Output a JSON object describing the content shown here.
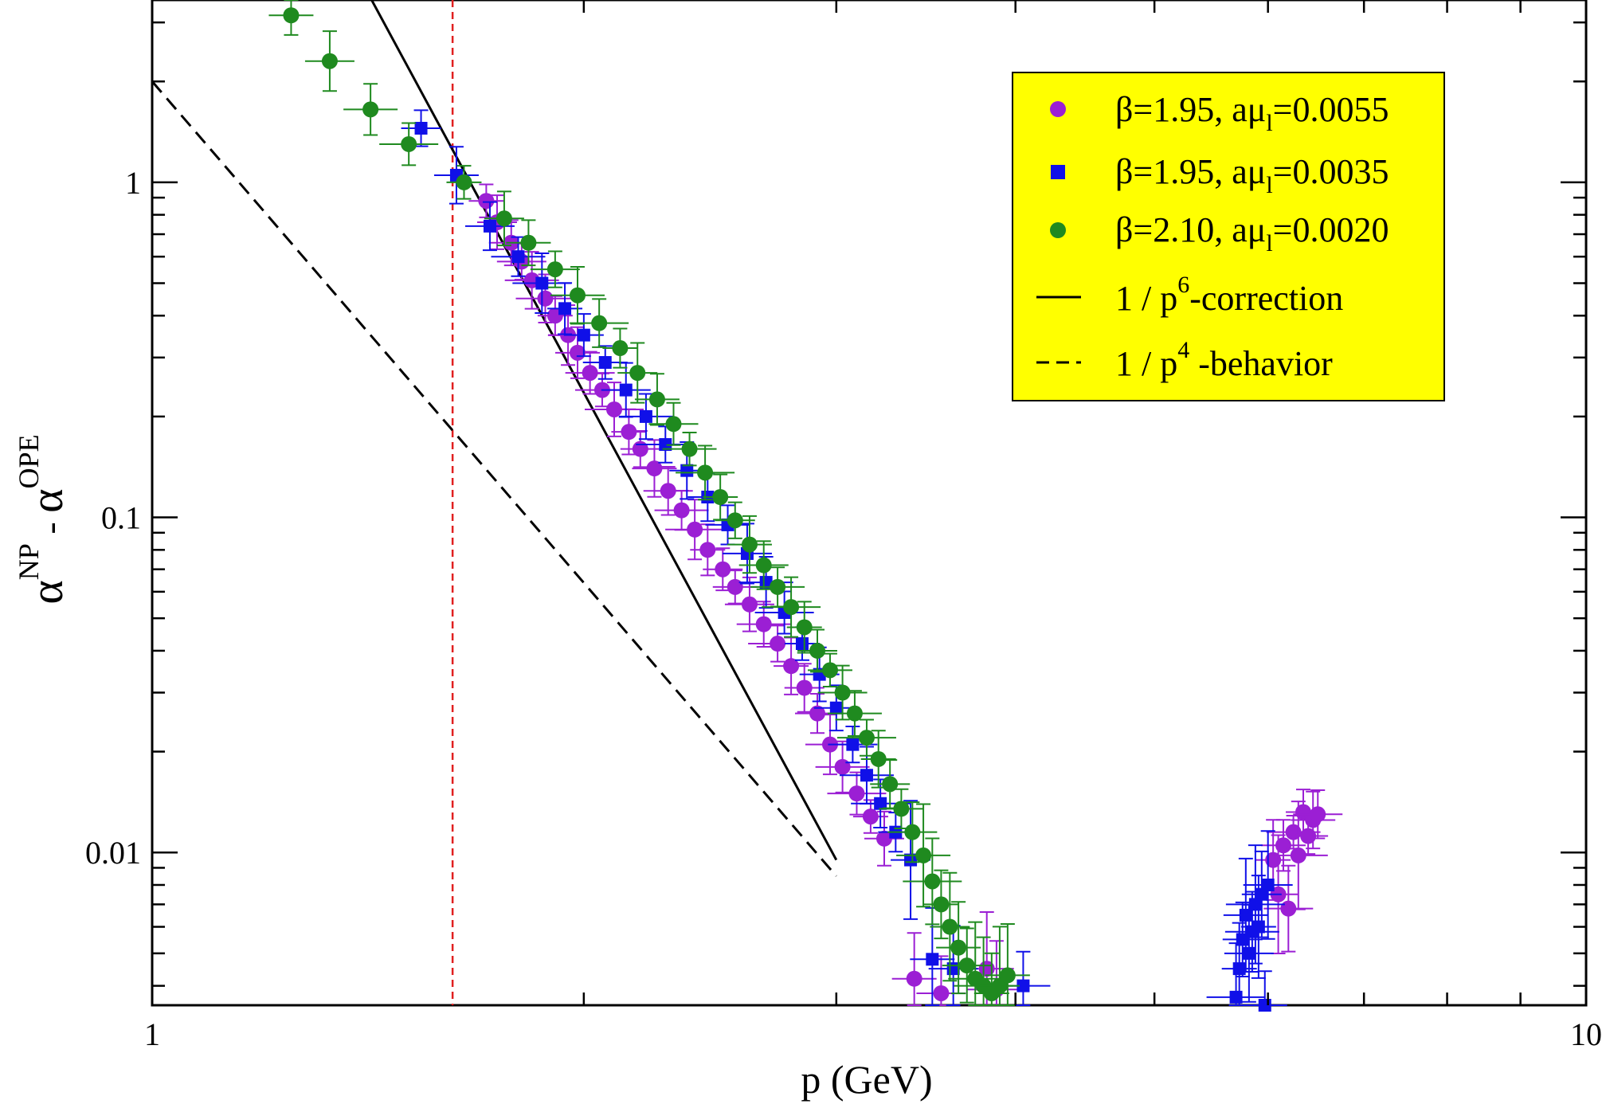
{
  "chart_data": {
    "type": "scatter",
    "xscale": "log",
    "yscale": "log",
    "xlim": [
      1,
      10
    ],
    "ylim": [
      0.0035,
      3.5
    ],
    "grid": false,
    "legend_position": "top-right",
    "xlabel": "p (GeV)",
    "ylabel": {
      "base1": "α",
      "sup1": "NP",
      "sep": " - ",
      "base2": "α",
      "sup2": "OPE"
    },
    "x_ticks": [
      {
        "value": 1,
        "label": "1"
      },
      {
        "value": 10,
        "label": "10"
      }
    ],
    "y_ticks": [
      {
        "value": 0.01,
        "label": "0.01"
      },
      {
        "value": 0.1,
        "label": "0.1"
      },
      {
        "value": 1,
        "label": "1"
      }
    ],
    "vertical_reference_line": {
      "x": 1.62,
      "color": "#e02020",
      "style": "dashed"
    },
    "colors": {
      "purple": "#9b1fd4",
      "blue": "#1010e8",
      "green": "#1f8a1f",
      "legend_bg": "#ffff00"
    },
    "legend": [
      {
        "kind": "circle",
        "color": "#9b1fd4",
        "text": "β=1.95, aμ",
        "sub": "l",
        "text2": "=0.0055"
      },
      {
        "kind": "square",
        "color": "#1010e8",
        "text": "β=1.95, aμ",
        "sub": "l",
        "text2": "=0.0035"
      },
      {
        "kind": "circle",
        "color": "#1f8a1f",
        "text": "β=2.10, aμ",
        "sub": "l",
        "text2": "=0.0020"
      },
      {
        "kind": "solid",
        "color": "#000000",
        "text": "1  / p",
        "sup": "6",
        "text2": "-correction"
      },
      {
        "kind": "dashed",
        "color": "#000000",
        "text": "1 / p",
        "sup": "4",
        "text2": " -behavior"
      }
    ],
    "lines": [
      {
        "name": "1 / p^6-correction",
        "style": "solid",
        "points": [
          [
            1.42,
            3.55
          ],
          [
            3.0,
            0.0095
          ]
        ]
      },
      {
        "name": "1 / p^4-behavior",
        "style": "dashed",
        "points": [
          [
            1.0,
            2.0
          ],
          [
            3.0,
            0.0085
          ]
        ]
      }
    ],
    "series": [
      {
        "name": "β=1.95, aμl=0.0055",
        "marker": "circle",
        "color": "#9b1fd4",
        "points": [
          [
            1.71,
            0.88
          ],
          [
            1.74,
            0.76
          ],
          [
            1.78,
            0.66
          ],
          [
            1.81,
            0.58
          ],
          [
            1.84,
            0.51
          ],
          [
            1.88,
            0.45
          ],
          [
            1.91,
            0.4
          ],
          [
            1.95,
            0.35
          ],
          [
            1.98,
            0.31
          ],
          [
            2.02,
            0.27
          ],
          [
            2.06,
            0.24
          ],
          [
            2.1,
            0.21
          ],
          [
            2.15,
            0.18
          ],
          [
            2.19,
            0.16
          ],
          [
            2.24,
            0.14
          ],
          [
            2.29,
            0.12
          ],
          [
            2.34,
            0.105
          ],
          [
            2.39,
            0.092
          ],
          [
            2.44,
            0.08
          ],
          [
            2.5,
            0.07
          ],
          [
            2.55,
            0.062
          ],
          [
            2.61,
            0.055
          ],
          [
            2.67,
            0.048
          ],
          [
            2.73,
            0.042
          ],
          [
            2.79,
            0.036
          ],
          [
            2.85,
            0.031
          ],
          [
            2.91,
            0.026
          ],
          [
            2.97,
            0.021
          ],
          [
            3.03,
            0.018
          ],
          [
            3.1,
            0.015
          ],
          [
            3.17,
            0.0128
          ],
          [
            3.24,
            0.011
          ],
          [
            3.4,
            0.0042
          ],
          [
            3.55,
            0.0038
          ],
          [
            3.82,
            0.0045
          ],
          [
            3.88,
            0.0039
          ],
          [
            6.05,
            0.0095
          ],
          [
            6.1,
            0.0075
          ],
          [
            6.15,
            0.0105
          ],
          [
            6.2,
            0.0068
          ],
          [
            6.25,
            0.0115
          ],
          [
            6.3,
            0.0098
          ],
          [
            6.35,
            0.0132
          ],
          [
            6.4,
            0.0112
          ],
          [
            6.45,
            0.0125
          ],
          [
            6.5,
            0.013
          ]
        ]
      },
      {
        "name": "β=1.95, aμl=0.0035",
        "marker": "square",
        "color": "#1010e8",
        "points": [
          [
            1.54,
            1.45
          ],
          [
            1.63,
            1.05
          ],
          [
            1.72,
            0.74
          ],
          [
            1.8,
            0.6
          ],
          [
            1.87,
            0.5
          ],
          [
            1.94,
            0.42
          ],
          [
            2.0,
            0.35
          ],
          [
            2.07,
            0.29
          ],
          [
            2.14,
            0.24
          ],
          [
            2.21,
            0.2
          ],
          [
            2.28,
            0.165
          ],
          [
            2.36,
            0.138
          ],
          [
            2.44,
            0.115
          ],
          [
            2.52,
            0.095
          ],
          [
            2.6,
            0.078
          ],
          [
            2.68,
            0.064
          ],
          [
            2.76,
            0.052
          ],
          [
            2.84,
            0.042
          ],
          [
            2.92,
            0.034
          ],
          [
            3.0,
            0.027
          ],
          [
            3.08,
            0.021
          ],
          [
            3.15,
            0.017
          ],
          [
            3.22,
            0.014
          ],
          [
            3.3,
            0.0115
          ],
          [
            3.38,
            0.0095
          ],
          [
            3.5,
            0.0048
          ],
          [
            3.62,
            0.0045
          ],
          [
            4.05,
            0.004
          ],
          [
            5.7,
            0.0037
          ],
          [
            5.73,
            0.0045
          ],
          [
            5.76,
            0.0055
          ],
          [
            5.79,
            0.0065
          ],
          [
            5.82,
            0.005
          ],
          [
            5.85,
            0.0058
          ],
          [
            5.88,
            0.007
          ],
          [
            5.91,
            0.006
          ],
          [
            5.94,
            0.0075
          ],
          [
            5.97,
            0.0035
          ],
          [
            6.0,
            0.008
          ]
        ]
      },
      {
        "name": "β=2.10, aμl=0.0020",
        "marker": "circle",
        "color": "#1f8a1f",
        "points": [
          [
            1.25,
            3.15
          ],
          [
            1.33,
            2.3
          ],
          [
            1.42,
            1.65
          ],
          [
            1.51,
            1.3
          ],
          [
            1.65,
            1.0
          ],
          [
            1.76,
            0.78
          ],
          [
            1.83,
            0.66
          ],
          [
            1.91,
            0.55
          ],
          [
            1.98,
            0.46
          ],
          [
            2.05,
            0.38
          ],
          [
            2.12,
            0.32
          ],
          [
            2.18,
            0.27
          ],
          [
            2.25,
            0.225
          ],
          [
            2.31,
            0.19
          ],
          [
            2.37,
            0.16
          ],
          [
            2.43,
            0.136
          ],
          [
            2.49,
            0.115
          ],
          [
            2.55,
            0.098
          ],
          [
            2.61,
            0.083
          ],
          [
            2.67,
            0.072
          ],
          [
            2.73,
            0.062
          ],
          [
            2.79,
            0.054
          ],
          [
            2.85,
            0.047
          ],
          [
            2.91,
            0.04
          ],
          [
            2.97,
            0.035
          ],
          [
            3.03,
            0.03
          ],
          [
            3.09,
            0.026
          ],
          [
            3.15,
            0.022
          ],
          [
            3.21,
            0.019
          ],
          [
            3.27,
            0.016
          ],
          [
            3.33,
            0.0135
          ],
          [
            3.39,
            0.0115
          ],
          [
            3.45,
            0.0098
          ],
          [
            3.5,
            0.0082
          ],
          [
            3.55,
            0.007
          ],
          [
            3.6,
            0.006
          ],
          [
            3.65,
            0.0052
          ],
          [
            3.7,
            0.0046
          ],
          [
            3.75,
            0.0042
          ],
          [
            3.8,
            0.004
          ],
          [
            3.85,
            0.0038
          ],
          [
            3.9,
            0.004
          ],
          [
            3.95,
            0.0043
          ]
        ]
      }
    ]
  }
}
